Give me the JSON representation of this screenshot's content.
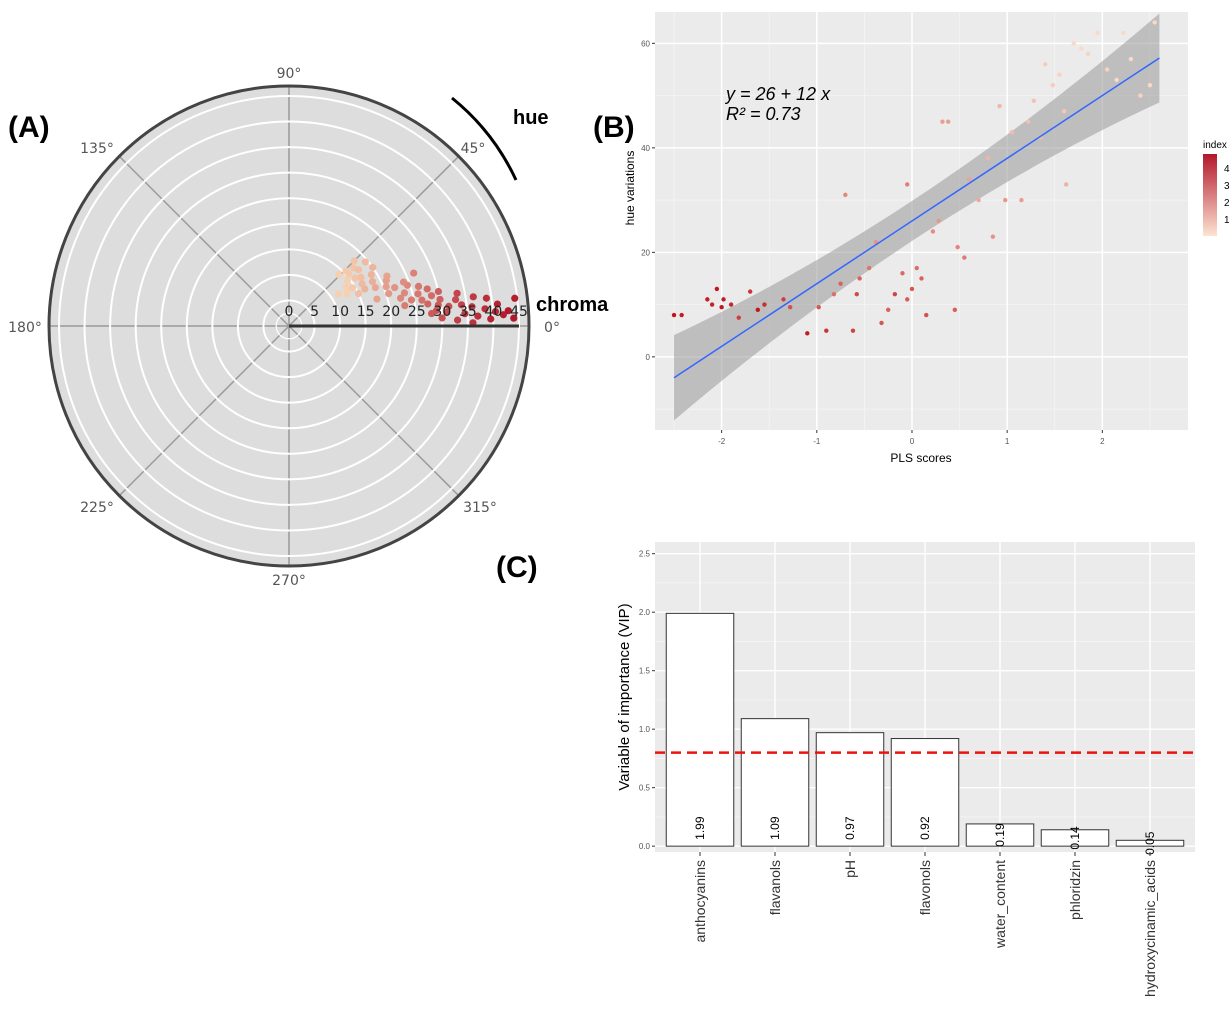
{
  "panels": {
    "a": "(A)",
    "b": "(B)",
    "c": "(C)"
  },
  "colors": {
    "panel_bg": "#dddddd",
    "grid": "#ffffff",
    "fit_line": "#3366ff",
    "band": "#999999",
    "threshold": "#ee1111",
    "bar_fill": "#ffffff",
    "bar_stroke": "#333333"
  },
  "chart_data": [
    {
      "type": "scatter",
      "coordinate_system": "polar",
      "hue_label": "hue",
      "chroma_label": "chroma",
      "angle_ticks": [
        "0°",
        "45°",
        "90°",
        "135°",
        "180°",
        "225°",
        "270°",
        "315°"
      ],
      "radius_ticks": [
        "0",
        "5",
        "10",
        "15",
        "20",
        "25",
        "30",
        "35",
        "40",
        "45"
      ],
      "rlim": [
        0,
        45
      ],
      "color_scale": [
        "#f7d0b0",
        "#b2182b"
      ],
      "points": [
        {
          "hue": 46,
          "chroma": 14,
          "index": 1.0
        },
        {
          "hue": 44,
          "chroma": 15.5,
          "index": 1.1
        },
        {
          "hue": 41,
          "chroma": 15.5,
          "index": 1.1
        },
        {
          "hue": 42,
          "chroma": 17,
          "index": 1.2
        },
        {
          "hue": 38,
          "chroma": 14.5,
          "index": 1.0
        },
        {
          "hue": 39,
          "chroma": 17.5,
          "index": 1.3
        },
        {
          "hue": 36,
          "chroma": 16,
          "index": 1.2
        },
        {
          "hue": 34,
          "chroma": 13.5,
          "index": 1.0
        },
        {
          "hue": 34,
          "chroma": 17,
          "index": 1.3
        },
        {
          "hue": 31,
          "chroma": 14.5,
          "index": 1.1
        },
        {
          "hue": 30,
          "chroma": 16.5,
          "index": 1.4
        },
        {
          "hue": 32,
          "chroma": 19,
          "index": 1.5
        },
        {
          "hue": 28,
          "chroma": 18.5,
          "index": 1.6
        },
        {
          "hue": 26,
          "chroma": 16.5,
          "index": 1.5
        },
        {
          "hue": 24,
          "chroma": 18.5,
          "index": 1.7
        },
        {
          "hue": 25,
          "chroma": 21,
          "index": 1.9
        },
        {
          "hue": 22,
          "chroma": 20.5,
          "index": 1.9
        },
        {
          "hue": 20,
          "chroma": 22,
          "index": 2.1
        },
        {
          "hue": 18,
          "chroma": 20.5,
          "index": 2.0
        },
        {
          "hue": 19,
          "chroma": 24.5,
          "index": 2.3
        },
        {
          "hue": 16,
          "chroma": 23.5,
          "index": 2.3
        },
        {
          "hue": 17,
          "chroma": 26.5,
          "index": 2.6
        },
        {
          "hue": 14,
          "chroma": 22.5,
          "index": 2.3
        },
        {
          "hue": 14,
          "chroma": 26,
          "index": 2.6
        },
        {
          "hue": 12,
          "chroma": 24.5,
          "index": 2.5
        },
        {
          "hue": 12,
          "chroma": 28.5,
          "index": 2.8
        },
        {
          "hue": 11,
          "chroma": 26.5,
          "index": 2.7
        },
        {
          "hue": 10,
          "chroma": 23,
          "index": 2.5
        },
        {
          "hue": 10,
          "chroma": 30,
          "index": 3.0
        },
        {
          "hue": 9,
          "chroma": 27.5,
          "index": 2.9
        },
        {
          "hue": 8,
          "chroma": 29.5,
          "index": 3.1
        },
        {
          "hue": 7,
          "chroma": 31.5,
          "index": 3.3
        },
        {
          "hue": 6,
          "chroma": 29,
          "index": 3.2
        },
        {
          "hue": 5,
          "chroma": 31,
          "index": 3.4
        },
        {
          "hue": 7,
          "chroma": 34,
          "index": 3.5
        },
        {
          "hue": 6,
          "chroma": 36,
          "index": 3.7
        },
        {
          "hue": 4,
          "chroma": 34.5,
          "index": 3.7
        },
        {
          "hue": 5,
          "chroma": 38.5,
          "index": 3.9
        },
        {
          "hue": 4,
          "chroma": 40.5,
          "index": 4.0
        },
        {
          "hue": 3,
          "chroma": 37,
          "index": 3.9
        },
        {
          "hue": 3,
          "chroma": 42,
          "index": 4.2
        },
        {
          "hue": 6,
          "chroma": 41,
          "index": 4.1
        },
        {
          "hue": 2,
          "chroma": 39.5,
          "index": 4.1
        },
        {
          "hue": 2,
          "chroma": 44,
          "index": 4.3
        },
        {
          "hue": 7,
          "chroma": 44.5,
          "index": 4.2
        },
        {
          "hue": 4,
          "chroma": 43,
          "index": 4.3
        },
        {
          "hue": 1,
          "chroma": 36,
          "index": 3.8
        },
        {
          "hue": 8,
          "chroma": 39,
          "index": 3.9
        },
        {
          "hue": 9,
          "chroma": 33,
          "index": 3.4
        },
        {
          "hue": 13,
          "chroma": 30,
          "index": 3.0
        },
        {
          "hue": 15,
          "chroma": 28,
          "index": 2.8
        },
        {
          "hue": 21,
          "chroma": 24,
          "index": 2.2
        },
        {
          "hue": 27,
          "chroma": 21.5,
          "index": 1.8
        },
        {
          "hue": 29,
          "chroma": 13,
          "index": 1.0
        },
        {
          "hue": 35,
          "chroma": 20,
          "index": 1.5
        },
        {
          "hue": 40,
          "chroma": 19.5,
          "index": 1.4
        },
        {
          "hue": 45,
          "chroma": 18,
          "index": 1.2
        },
        {
          "hue": 33,
          "chroma": 11.5,
          "index": 1.0
        },
        {
          "hue": 23,
          "chroma": 26.5,
          "index": 2.4
        },
        {
          "hue": 11,
          "chroma": 33.5,
          "index": 3.5
        },
        {
          "hue": 3,
          "chroma": 30,
          "index": 3.3
        },
        {
          "hue": 2,
          "chroma": 33,
          "index": 3.6
        },
        {
          "hue": 9,
          "chroma": 36.5,
          "index": 3.7
        },
        {
          "hue": 5,
          "chroma": 28,
          "index": 3.1
        },
        {
          "hue": 17,
          "chroma": 18,
          "index": 1.8
        },
        {
          "hue": 25,
          "chroma": 15,
          "index": 1.3
        }
      ]
    },
    {
      "type": "scatter",
      "xlabel": "PLS scores",
      "ylabel": "hue variations",
      "x_ticks": [
        -2,
        -1,
        0,
        1,
        2
      ],
      "y_ticks": [
        0,
        20,
        40,
        60
      ],
      "xlim": [
        -2.7,
        2.9
      ],
      "ylim": [
        -14,
        66
      ],
      "equation": "y = 26 + 12 x",
      "r2_text": "R² = 0.73",
      "fit": {
        "intercept": 26,
        "slope": 12,
        "x_range": [
          -2.5,
          2.6
        ]
      },
      "legend": {
        "title": "index",
        "labels": [
          "4",
          "3",
          "2",
          "1"
        ]
      },
      "points": [
        {
          "x": -2.5,
          "y": 8,
          "index": 4.3
        },
        {
          "x": -2.42,
          "y": 8,
          "index": 4.2
        },
        {
          "x": -2.15,
          "y": 11,
          "index": 4.2
        },
        {
          "x": -2.1,
          "y": 10,
          "index": 4.1
        },
        {
          "x": -2.05,
          "y": 13,
          "index": 4.4
        },
        {
          "x": -2.0,
          "y": 9.5,
          "index": 4.3
        },
        {
          "x": -1.98,
          "y": 11,
          "index": 4.2
        },
        {
          "x": -1.9,
          "y": 10,
          "index": 4.0
        },
        {
          "x": -1.82,
          "y": 7.5,
          "index": 3.6
        },
        {
          "x": -1.7,
          "y": 12.5,
          "index": 3.8
        },
        {
          "x": -1.62,
          "y": 9,
          "index": 4.3
        },
        {
          "x": -1.55,
          "y": 10,
          "index": 3.9
        },
        {
          "x": -1.35,
          "y": 11,
          "index": 3.6
        },
        {
          "x": -1.28,
          "y": 9.5,
          "index": 3.3
        },
        {
          "x": -1.1,
          "y": 4.5,
          "index": 4.2
        },
        {
          "x": -0.98,
          "y": 9.5,
          "index": 3.2
        },
        {
          "x": -0.9,
          "y": 5,
          "index": 3.8
        },
        {
          "x": -0.82,
          "y": 12,
          "index": 2.8
        },
        {
          "x": -0.75,
          "y": 14,
          "index": 3.0
        },
        {
          "x": -0.62,
          "y": 5,
          "index": 3.5
        },
        {
          "x": -0.58,
          "y": 12,
          "index": 3.4
        },
        {
          "x": -0.55,
          "y": 15,
          "index": 3.0
        },
        {
          "x": -0.45,
          "y": 17,
          "index": 2.7
        },
        {
          "x": -0.38,
          "y": 22,
          "index": 2.2
        },
        {
          "x": -0.32,
          "y": 6.5,
          "index": 3.2
        },
        {
          "x": -0.25,
          "y": 9,
          "index": 3.0
        },
        {
          "x": -0.18,
          "y": 12,
          "index": 3.5
        },
        {
          "x": -0.1,
          "y": 16,
          "index": 2.9
        },
        {
          "x": -0.05,
          "y": 11,
          "index": 3.1
        },
        {
          "x": 0.0,
          "y": 13,
          "index": 3.2
        },
        {
          "x": 0.05,
          "y": 17,
          "index": 2.8
        },
        {
          "x": 0.1,
          "y": 15,
          "index": 3.0
        },
        {
          "x": 0.15,
          "y": 8,
          "index": 3.3
        },
        {
          "x": 0.22,
          "y": 24,
          "index": 2.3
        },
        {
          "x": 0.28,
          "y": 26,
          "index": 2.1
        },
        {
          "x": 0.32,
          "y": 45,
          "index": 2.0
        },
        {
          "x": 0.38,
          "y": 45,
          "index": 2.0
        },
        {
          "x": 0.45,
          "y": 9,
          "index": 3.1
        },
        {
          "x": 0.48,
          "y": 21,
          "index": 2.4
        },
        {
          "x": 0.55,
          "y": 19,
          "index": 2.6
        },
        {
          "x": 0.7,
          "y": 30,
          "index": 1.8
        },
        {
          "x": 0.8,
          "y": 38,
          "index": 1.6
        },
        {
          "x": 0.85,
          "y": 23,
          "index": 2.2
        },
        {
          "x": 0.92,
          "y": 48,
          "index": 1.6
        },
        {
          "x": 0.98,
          "y": 30,
          "index": 2.1
        },
        {
          "x": 1.05,
          "y": 43,
          "index": 1.5
        },
        {
          "x": 1.15,
          "y": 30,
          "index": 2.0
        },
        {
          "x": 1.22,
          "y": 45,
          "index": 1.4
        },
        {
          "x": 1.28,
          "y": 49,
          "index": 1.4
        },
        {
          "x": 1.35,
          "y": 42,
          "index": 1.5
        },
        {
          "x": 1.4,
          "y": 56,
          "index": 1.2
        },
        {
          "x": 1.48,
          "y": 52,
          "index": 1.2
        },
        {
          "x": 1.55,
          "y": 54,
          "index": 1.1
        },
        {
          "x": 1.62,
          "y": 33,
          "index": 1.7
        },
        {
          "x": 1.7,
          "y": 60,
          "index": 1.0
        },
        {
          "x": 1.78,
          "y": 59,
          "index": 1.0
        },
        {
          "x": 1.85,
          "y": 58,
          "index": 1.1
        },
        {
          "x": 1.95,
          "y": 62,
          "index": 1.0
        },
        {
          "x": 2.05,
          "y": 55,
          "index": 1.1
        },
        {
          "x": 2.15,
          "y": 53,
          "index": 1.0
        },
        {
          "x": 2.22,
          "y": 62,
          "index": 1.0
        },
        {
          "x": 2.3,
          "y": 57,
          "index": 1.0
        },
        {
          "x": 2.4,
          "y": 50,
          "index": 1.1
        },
        {
          "x": 2.5,
          "y": 52,
          "index": 1.0
        },
        {
          "x": 2.55,
          "y": 64,
          "index": 1.0
        },
        {
          "x": 0.6,
          "y": 34,
          "index": 1.9
        },
        {
          "x": -0.7,
          "y": 31,
          "index": 2.4
        },
        {
          "x": -0.05,
          "y": 33,
          "index": 2.5
        },
        {
          "x": 1.6,
          "y": 47,
          "index": 1.3
        }
      ]
    },
    {
      "type": "bar",
      "ylabel": "Variable of importance (VIP)",
      "categories": [
        "anthocyanins",
        "flavanols",
        "pH",
        "flavonols",
        "water_content",
        "phloridzin",
        "hydroxycinamic_acids"
      ],
      "values": [
        1.99,
        1.09,
        0.97,
        0.92,
        0.19,
        0.14,
        0.05
      ],
      "value_labels": [
        "1.99",
        "1.09",
        "0.97",
        "0.92",
        "0.19",
        "0.14",
        "0.05"
      ],
      "y_ticks": [
        "0.0",
        "0.5",
        "1.0",
        "1.5",
        "2.0",
        "2.5"
      ],
      "ylim": [
        -0.05,
        2.6
      ],
      "threshold": 0.8
    }
  ]
}
